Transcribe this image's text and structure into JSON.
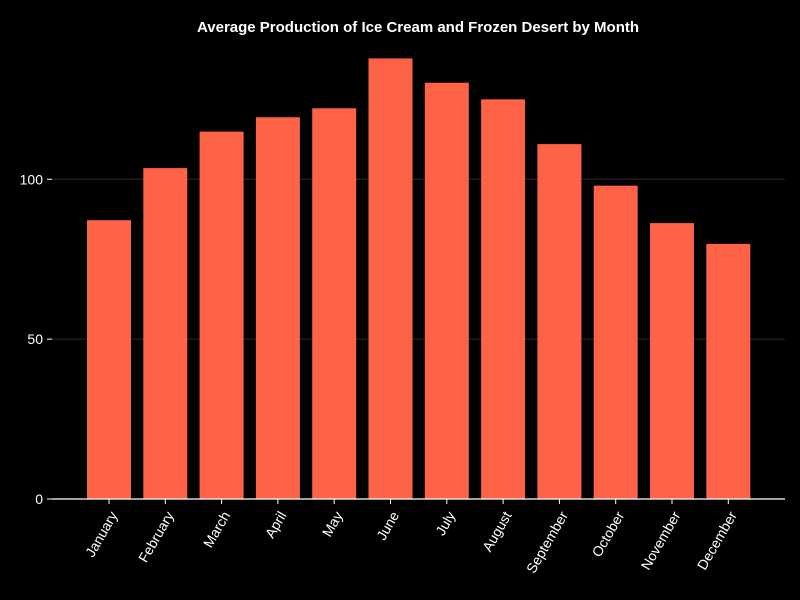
{
  "chart_data": {
    "type": "bar",
    "title": "Average Production of Ice Cream and Frozen Desert by Month",
    "xlabel": "",
    "ylabel": "",
    "categories": [
      "January",
      "February",
      "March",
      "April",
      "May",
      "June",
      "July",
      "August",
      "September",
      "October",
      "November",
      "December"
    ],
    "values": [
      87.2,
      103.5,
      114.9,
      119.4,
      122.2,
      137.8,
      130.2,
      125.0,
      111.0,
      98.0,
      86.3,
      79.8
    ],
    "ylim": [
      0,
      142
    ],
    "yticks": [
      0,
      50,
      100
    ],
    "grid": true,
    "legend": "none",
    "colors": {
      "background": "#000000",
      "bar": "#FF6347",
      "text": "#ffffff",
      "axis": "#ffffff",
      "grid": "#2a2a2a"
    }
  }
}
